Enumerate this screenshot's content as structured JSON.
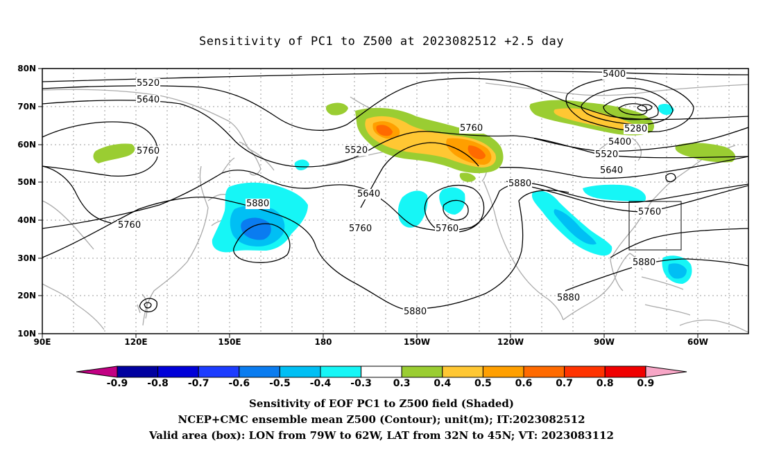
{
  "title": "Sensitivity of PC1 to Z500 at 2023082512 +2.5 day",
  "lat_labels": [
    "80N",
    "70N",
    "60N",
    "50N",
    "40N",
    "30N",
    "20N",
    "10N"
  ],
  "lon_labels": [
    "90E",
    "120E",
    "150E",
    "180",
    "150W",
    "120W",
    "90W",
    "60W"
  ],
  "colorbar": {
    "labels": [
      "-0.9",
      "-0.8",
      "-0.7",
      "-0.6",
      "-0.5",
      "-0.4",
      "-0.3",
      "0.3",
      "0.4",
      "0.5",
      "0.6",
      "0.7",
      "0.8",
      "0.9"
    ],
    "colors": [
      "#c20083",
      "#00009f",
      "#0000d8",
      "#1c3cff",
      "#0a7cf0",
      "#00bff4",
      "#16f6f6",
      "#ffffff",
      "#9acd32",
      "#ffc733",
      "#ff9f00",
      "#ff6a00",
      "#ff3300",
      "#f00000",
      "#f7a6c6"
    ]
  },
  "contour_labels": [
    {
      "text": "5400",
      "name": "contour-label-5400-a"
    },
    {
      "text": "5520",
      "name": "contour-label-5520-a"
    },
    {
      "text": "5640",
      "name": "contour-label-5640-a"
    },
    {
      "text": "5760",
      "name": "contour-label-5760-a"
    },
    {
      "text": "5520",
      "name": "contour-label-5520-b"
    },
    {
      "text": "5760",
      "name": "contour-label-5760-b"
    },
    {
      "text": "5280",
      "name": "contour-label-5280"
    },
    {
      "text": "5400",
      "name": "contour-label-5400-b"
    },
    {
      "text": "5520",
      "name": "contour-label-5520-c"
    },
    {
      "text": "5640",
      "name": "contour-label-5640-b"
    },
    {
      "text": "5880",
      "name": "contour-label-5880-a"
    },
    {
      "text": "5640",
      "name": "contour-label-5640-c"
    },
    {
      "text": "5760",
      "name": "contour-label-5760-c"
    },
    {
      "text": "5760",
      "name": "contour-label-5760-d"
    },
    {
      "text": "5760",
      "name": "contour-label-5760-e"
    },
    {
      "text": "5880",
      "name": "contour-label-5880-b"
    },
    {
      "text": "5760",
      "name": "contour-label-5760-f"
    },
    {
      "text": "5880",
      "name": "contour-label-5880-c"
    },
    {
      "text": "5880",
      "name": "contour-label-5880-d"
    },
    {
      "text": "5880",
      "name": "contour-label-5880-e"
    }
  ],
  "captions": [
    "Sensitivity of EOF PC1 to Z500 field (Shaded)",
    "NCEP+CMC ensemble mean Z500 (Contour); unit(m); IT:2023082512",
    "Valid area (box): LON from 79W to 62W, LAT from 32N to 45N; VT: 2023083112"
  ],
  "valid_box": {
    "lon_west": -79,
    "lon_east": -62,
    "lat_south": 32,
    "lat_north": 45
  }
}
